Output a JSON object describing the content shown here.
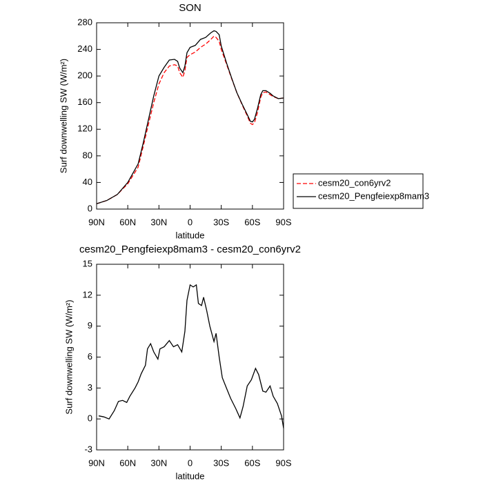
{
  "chart_data": [
    {
      "type": "line",
      "title": "SON",
      "xlabel": "latitude",
      "ylabel": "Surf downwelling SW (W/m²)",
      "x": [
        90,
        80,
        70,
        60,
        50,
        45,
        40,
        35,
        30,
        25,
        20,
        15,
        12,
        10,
        7,
        5,
        3,
        0,
        -5,
        -10,
        -15,
        -20,
        -23,
        -25,
        -28,
        -30,
        -35,
        -40,
        -45,
        -50,
        -55,
        -58,
        -60,
        -62,
        -65,
        -68,
        -70,
        -73,
        -77,
        -80,
        -85,
        -90
      ],
      "series": [
        {
          "name": "cesm20_con6yrv2",
          "color": "#ff0000",
          "dashed": true,
          "values": [
            8,
            13,
            22,
            38,
            63,
            95,
            128,
            160,
            188,
            205,
            215,
            217,
            215,
            205,
            198,
            208,
            228,
            232,
            236,
            243,
            248,
            255,
            260,
            258,
            252,
            240,
            218,
            196,
            175,
            157,
            140,
            129,
            127,
            130,
            146,
            168,
            175,
            176,
            172,
            169,
            166,
            167
          ]
        },
        {
          "name": "cesm20_Pengfeiexp8mam3",
          "color": "#000000",
          "dashed": false,
          "values": [
            8,
            13,
            22,
            40,
            68,
            100,
            135,
            170,
            200,
            213,
            224,
            225,
            222,
            212,
            205,
            215,
            235,
            243,
            246,
            255,
            258,
            265,
            268,
            267,
            262,
            245,
            220,
            197,
            175,
            158,
            142,
            132,
            131,
            135,
            152,
            172,
            178,
            178,
            174,
            170,
            166,
            167
          ]
        }
      ],
      "xlim": [
        90,
        -90
      ],
      "xticks": [
        {
          "value": 90,
          "label": "90N"
        },
        {
          "value": 60,
          "label": "60N"
        },
        {
          "value": 30,
          "label": "30N"
        },
        0,
        {
          "value": -30,
          "label": "30S"
        },
        {
          "value": -60,
          "label": "60S"
        },
        {
          "value": -90,
          "label": "90S"
        }
      ],
      "ylim": [
        0,
        280
      ],
      "yticks": [
        0,
        40,
        80,
        120,
        160,
        200,
        240,
        280
      ],
      "legend": "right"
    },
    {
      "type": "line",
      "title": "cesm20_Pengfeiexp8mam3 - cesm20_con6yrv2",
      "xlabel": "latitude",
      "ylabel": "Surf downwelling SW (W/m²)",
      "x": [
        88,
        83,
        78,
        73,
        69,
        65,
        61,
        58,
        53,
        50,
        47,
        43,
        41,
        38,
        35,
        31,
        29,
        25,
        20,
        16,
        12,
        8,
        5,
        3,
        0,
        -3,
        -6,
        -8,
        -11,
        -13,
        -16,
        -19,
        -23,
        -25,
        -28,
        -31,
        -35,
        -39,
        -44,
        -48,
        -51,
        -55,
        -59,
        -63,
        -66,
        -70,
        -73,
        -77,
        -80,
        -84,
        -88,
        -90
      ],
      "values": [
        0.3,
        0.2,
        0,
        0.8,
        1.7,
        1.8,
        1.6,
        2.2,
        3,
        3.6,
        4.4,
        5.2,
        6.8,
        7.3,
        6.5,
        5.8,
        6.8,
        7,
        7.6,
        7,
        7.2,
        6.5,
        8.5,
        11.5,
        13,
        12.8,
        13,
        11.2,
        11,
        11.8,
        10.5,
        9,
        7.5,
        8.3,
        6,
        4,
        3,
        2,
        1,
        0.1,
        1.2,
        3.2,
        3.8,
        4.9,
        4.3,
        2.7,
        2.6,
        3.2,
        2.2,
        1.5,
        0.3,
        -0.9
      ],
      "color": "#000000",
      "xlim": [
        90,
        -90
      ],
      "xticks": [
        {
          "value": 90,
          "label": "90N"
        },
        {
          "value": 60,
          "label": "60N"
        },
        {
          "value": 30,
          "label": "30N"
        },
        0,
        {
          "value": -30,
          "label": "30S"
        },
        {
          "value": -60,
          "label": "60S"
        },
        {
          "value": -90,
          "label": "90S"
        }
      ],
      "ylim": [
        -3,
        15
      ],
      "yticks": [
        -3,
        0,
        3,
        6,
        9,
        12,
        15
      ]
    }
  ]
}
